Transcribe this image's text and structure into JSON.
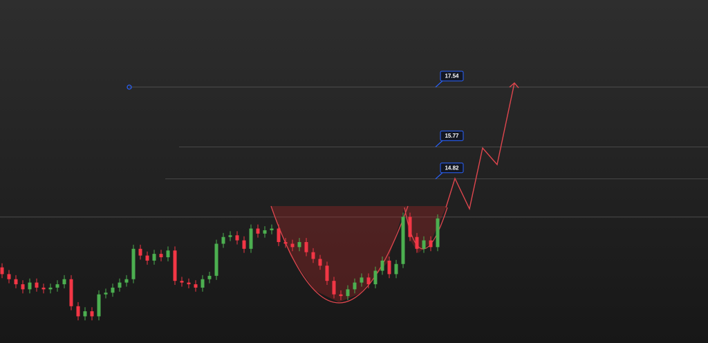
{
  "chart_data": {
    "type": "candlestick",
    "ylim": [
      9.96,
      20.12
    ],
    "up_color": "#4caf50",
    "down_color": "#f23645",
    "levels": [
      17.54,
      15.77,
      14.82
    ],
    "resistance": 13.69,
    "open": [
      12.2,
      12.0,
      11.85,
      11.7,
      11.55,
      11.75,
      11.6,
      11.55,
      11.6,
      11.7,
      11.85,
      11.05,
      10.75,
      10.9,
      10.75,
      11.4,
      11.45,
      11.6,
      11.75,
      11.85,
      12.75,
      12.55,
      12.4,
      12.6,
      12.5,
      12.7,
      11.8,
      11.75,
      11.7,
      11.6,
      11.85,
      11.95,
      12.9,
      13.1,
      13.15,
      13.0,
      12.75,
      13.35,
      13.2,
      13.3,
      13.35,
      12.95,
      12.9,
      12.8,
      12.95,
      12.65,
      12.45,
      12.25,
      11.8,
      11.4,
      11.35,
      11.55,
      11.75,
      11.9,
      11.7,
      12.1,
      12.4,
      12.0,
      12.3,
      13.7,
      13.1,
      12.75,
      13.0,
      12.8
    ],
    "high": [
      12.32,
      12.12,
      11.97,
      11.82,
      11.87,
      11.87,
      11.72,
      11.72,
      11.82,
      11.97,
      11.97,
      11.17,
      11.02,
      11.02,
      11.52,
      11.57,
      11.72,
      11.87,
      11.97,
      12.87,
      12.87,
      12.67,
      12.72,
      12.72,
      12.82,
      12.82,
      11.92,
      11.87,
      11.82,
      11.97,
      12.07,
      13.02,
      13.22,
      13.27,
      13.27,
      13.12,
      13.47,
      13.47,
      13.42,
      13.47,
      13.47,
      13.07,
      13.02,
      13.07,
      13.07,
      12.77,
      12.57,
      12.37,
      11.92,
      11.52,
      11.67,
      11.87,
      12.02,
      12.02,
      12.22,
      12.52,
      12.52,
      12.42,
      13.82,
      13.82,
      13.22,
      13.12,
      13.12,
      13.77
    ],
    "low": [
      11.88,
      11.73,
      11.58,
      11.43,
      11.43,
      11.48,
      11.43,
      11.43,
      11.48,
      11.58,
      10.93,
      10.63,
      10.63,
      10.63,
      10.63,
      11.28,
      11.33,
      11.48,
      11.63,
      11.73,
      12.43,
      12.28,
      12.28,
      12.38,
      12.38,
      11.68,
      11.63,
      11.58,
      11.48,
      11.48,
      11.73,
      11.83,
      12.78,
      12.98,
      12.88,
      12.63,
      12.63,
      13.08,
      13.08,
      13.18,
      12.83,
      12.78,
      12.68,
      12.68,
      12.53,
      12.33,
      12.13,
      11.68,
      11.28,
      11.23,
      11.23,
      11.43,
      11.63,
      11.58,
      11.58,
      11.98,
      11.88,
      11.88,
      12.18,
      12.98,
      12.63,
      12.63,
      12.68,
      12.68
    ],
    "close": [
      12.0,
      11.85,
      11.7,
      11.55,
      11.75,
      11.6,
      11.55,
      11.6,
      11.7,
      11.85,
      11.05,
      10.75,
      10.9,
      10.75,
      11.4,
      11.45,
      11.6,
      11.75,
      11.85,
      12.75,
      12.55,
      12.4,
      12.6,
      12.5,
      12.7,
      11.8,
      11.75,
      11.7,
      11.6,
      11.85,
      11.95,
      12.9,
      13.1,
      13.15,
      13.0,
      12.75,
      13.35,
      13.2,
      13.3,
      13.35,
      12.95,
      12.9,
      12.8,
      12.95,
      12.65,
      12.45,
      12.25,
      11.8,
      11.4,
      11.35,
      11.55,
      11.75,
      11.9,
      11.7,
      12.1,
      12.4,
      12.0,
      12.3,
      13.7,
      13.1,
      12.75,
      13.0,
      12.8,
      13.65
    ]
  }
}
